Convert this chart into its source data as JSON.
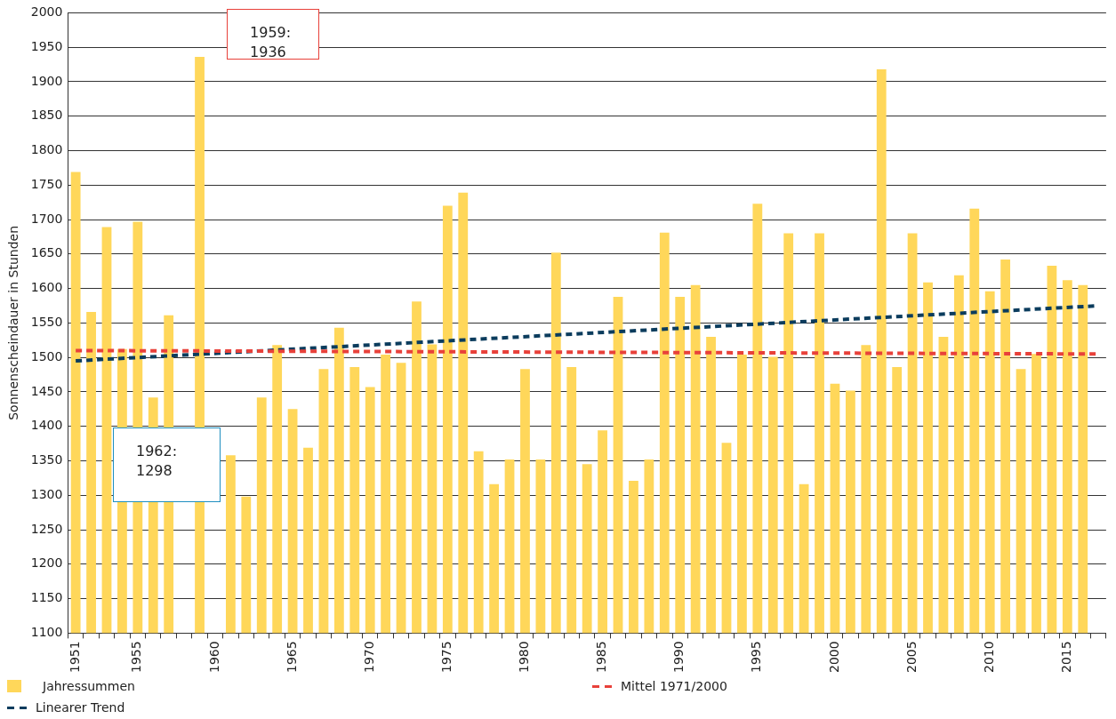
{
  "chart_data": {
    "type": "bar",
    "ylabel": "Sonnenscheindauer in Stunden",
    "categories": [
      "1951",
      null,
      null,
      null,
      "1955",
      null,
      null,
      null,
      null,
      "1960",
      null,
      null,
      null,
      null,
      "1965",
      null,
      null,
      null,
      null,
      "1970",
      null,
      null,
      null,
      null,
      "1975",
      null,
      null,
      null,
      null,
      "1980",
      null,
      null,
      null,
      null,
      "1985",
      null,
      null,
      null,
      null,
      "1990",
      null,
      null,
      null,
      null,
      "1995",
      null,
      null,
      null,
      null,
      "2000",
      null,
      null,
      null,
      null,
      "2005",
      null,
      null,
      null,
      null,
      "2010",
      null,
      null,
      null,
      null,
      "2015",
      null,
      null
    ],
    "series": [
      {
        "name": "Jahressummen",
        "color": "#ffd75a",
        "values": [
          1769,
          1566,
          1689,
          1512,
          1697,
          1442,
          1561,
          null,
          1936,
          null,
          1358,
          1298,
          1442,
          1518,
          1425,
          1369,
          1483,
          1543,
          1486,
          1457,
          1504,
          1492,
          1581,
          1519,
          1720,
          1739,
          1364,
          1316,
          1352,
          1483,
          1352,
          1652,
          1486,
          1345,
          1394,
          1588,
          1321,
          1352,
          1681,
          1588,
          1605,
          1530,
          1376,
          1504,
          1723,
          1501,
          1680,
          1316,
          1680,
          1462,
          1452,
          1518,
          1918,
          1486,
          1680,
          1609,
          1530,
          1619,
          1716,
          1596,
          1642,
          1483,
          1505,
          1633,
          1612,
          1605,
          null
        ]
      },
      {
        "name": "Mittel 1971/2000",
        "type": "line",
        "line_style": "dashed",
        "color": "#e8413a",
        "values": [
          1510,
          null,
          null,
          null,
          null,
          null,
          null,
          null,
          null,
          null,
          null,
          null,
          null,
          null,
          null,
          null,
          null,
          null,
          null,
          null,
          null,
          null,
          null,
          null,
          null,
          null,
          null,
          null,
          null,
          null,
          null,
          null,
          null,
          null,
          null,
          null,
          null,
          null,
          null,
          null,
          null,
          null,
          null,
          null,
          null,
          null,
          null,
          null,
          null,
          null,
          null,
          null,
          null,
          null,
          null,
          null,
          null,
          null,
          null,
          null,
          null,
          null,
          null,
          null,
          null,
          null,
          1505
        ]
      },
      {
        "name": "Linearer Trend",
        "type": "line",
        "line_style": "dashed",
        "color": "#0b3c5d",
        "values": [
          1495,
          null,
          null,
          null,
          null,
          null,
          null,
          null,
          null,
          null,
          null,
          null,
          null,
          null,
          null,
          null,
          null,
          null,
          null,
          null,
          null,
          null,
          null,
          null,
          null,
          null,
          null,
          null,
          null,
          null,
          null,
          null,
          null,
          null,
          null,
          null,
          null,
          null,
          null,
          null,
          null,
          null,
          null,
          null,
          null,
          null,
          null,
          null,
          null,
          null,
          null,
          null,
          null,
          null,
          null,
          null,
          null,
          null,
          null,
          null,
          null,
          null,
          null,
          null,
          null,
          null,
          1575
        ]
      }
    ],
    "ylim": [
      1100,
      2000
    ],
    "yticks": [
      1100,
      1150,
      1200,
      1250,
      1300,
      1350,
      1400,
      1450,
      1500,
      1550,
      1600,
      1650,
      1700,
      1750,
      1800,
      1850,
      1900,
      1950,
      2000
    ],
    "grid": "y",
    "legend": "bottom left",
    "marker": "none",
    "annotations": [
      "1959:\n1936",
      "1962:\n1298"
    ]
  }
}
